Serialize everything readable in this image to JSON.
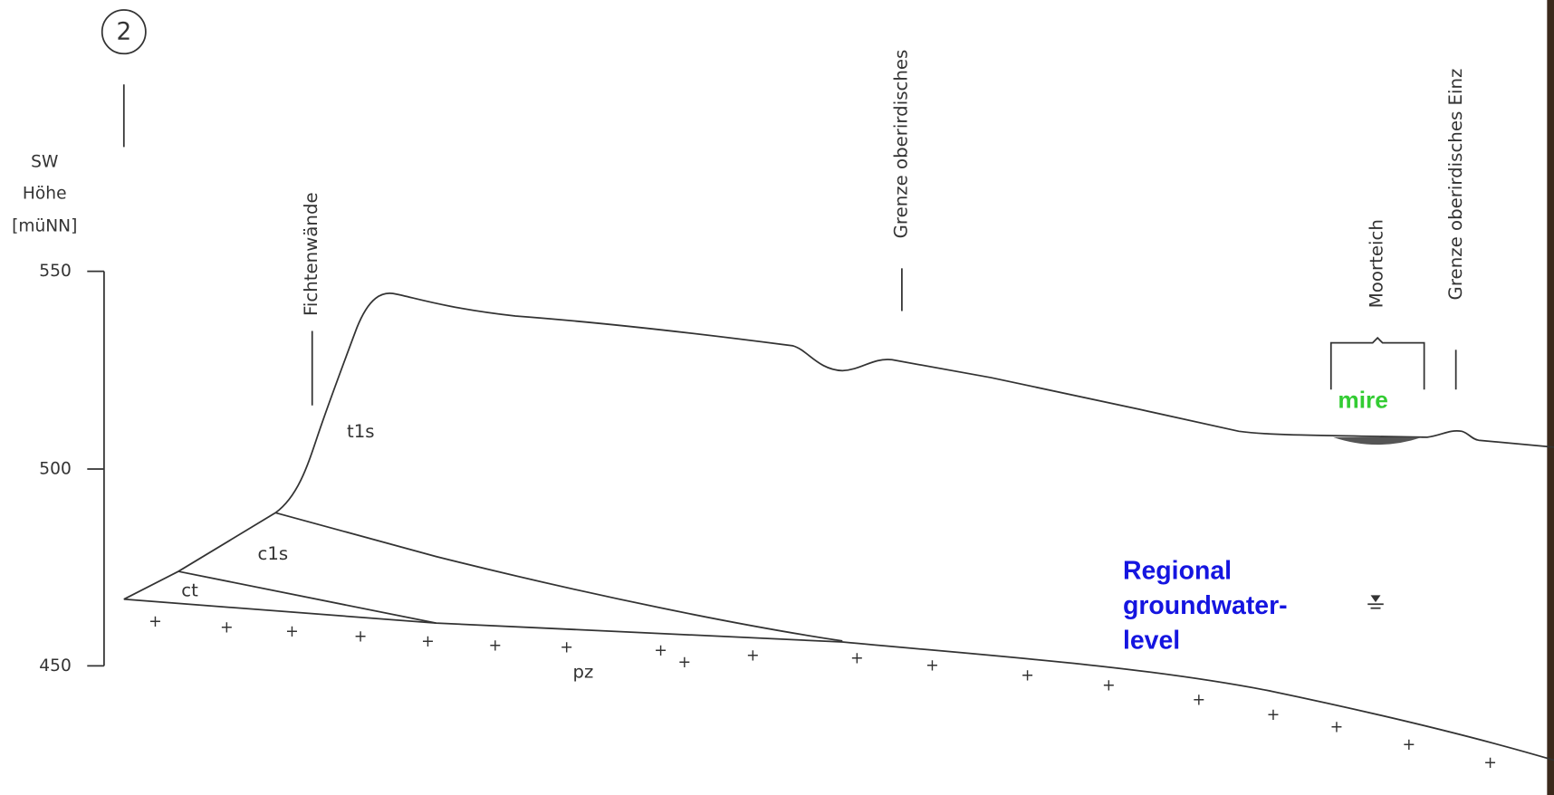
{
  "profile_number": "2",
  "axis": {
    "title_lines": [
      "SW",
      "Höhe",
      "[müNN]"
    ],
    "ticks": [
      "550",
      "500",
      "450"
    ]
  },
  "markers": [
    "Fichtenwände",
    "Grenze oberirdisches",
    "Moorteich",
    "Grenze oberirdisches Einz"
  ],
  "units": [
    "t1s",
    "c1s",
    "ct",
    "pz"
  ],
  "annotations": {
    "mire": "mire",
    "groundwater_lines": [
      "Regional",
      "groundwater-",
      "level"
    ]
  }
}
